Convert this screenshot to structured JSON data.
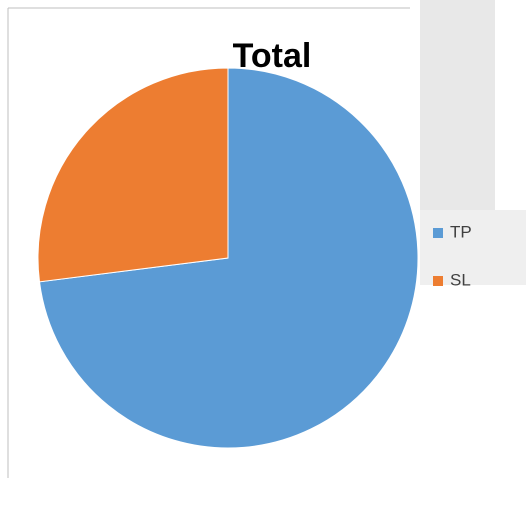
{
  "chart_data": {
    "type": "pie",
    "title": "Total",
    "categories": [
      "TP",
      "SL"
    ],
    "values": [
      73,
      27
    ],
    "colors": [
      "#5b9bd5",
      "#ed7d31"
    ],
    "legend": "right"
  }
}
